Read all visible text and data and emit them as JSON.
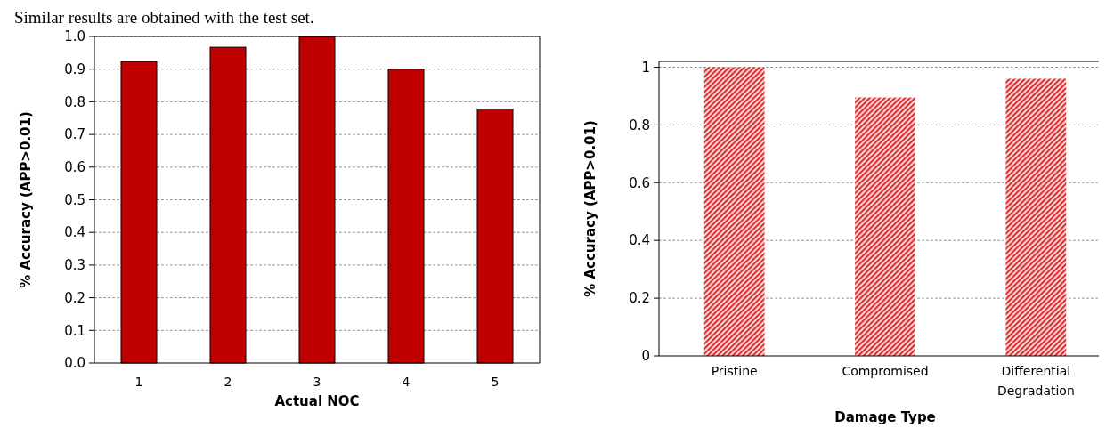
{
  "chart_data": [
    {
      "type": "bar",
      "title": "Similar results are obtained with the test set.",
      "categories": [
        "1",
        "2",
        "3",
        "4",
        "5"
      ],
      "values": [
        0.923,
        0.967,
        1.0,
        0.9,
        0.778
      ],
      "color": "#c00000",
      "xlabel": "Actual NOC",
      "ylabel": "% Accuracy (APP>0.01)",
      "ylim": [
        0,
        1
      ],
      "yticks": [
        {
          "value": 0,
          "label": "0.0"
        },
        {
          "value": 0.1,
          "label": "0.1"
        },
        {
          "value": 0.2,
          "label": "0.2"
        },
        {
          "value": 0.3,
          "label": "0.3"
        },
        {
          "value": 0.4,
          "label": "0.4"
        },
        {
          "value": 0.5,
          "label": "0.5"
        },
        {
          "value": 0.6,
          "label": "0.6"
        },
        {
          "value": 0.7,
          "label": "0.7"
        },
        {
          "value": 0.8,
          "label": "0.8"
        },
        {
          "value": 0.9,
          "label": "0.9"
        },
        {
          "value": 1,
          "label": "1.0"
        }
      ],
      "grid": "y"
    },
    {
      "type": "bar",
      "categories": [
        "Pristine",
        "Compromised",
        "Differential Degradation"
      ],
      "values": [
        1.0,
        0.895,
        0.96
      ],
      "color": "#e03030",
      "xlabel": "Damage Type",
      "ylabel": "% Accuracy (APP>0.01)",
      "ylim": [
        0,
        1.02
      ],
      "yticks": [
        0,
        0.2,
        0.4,
        0.6,
        0.8,
        1
      ],
      "grid": "y"
    }
  ]
}
